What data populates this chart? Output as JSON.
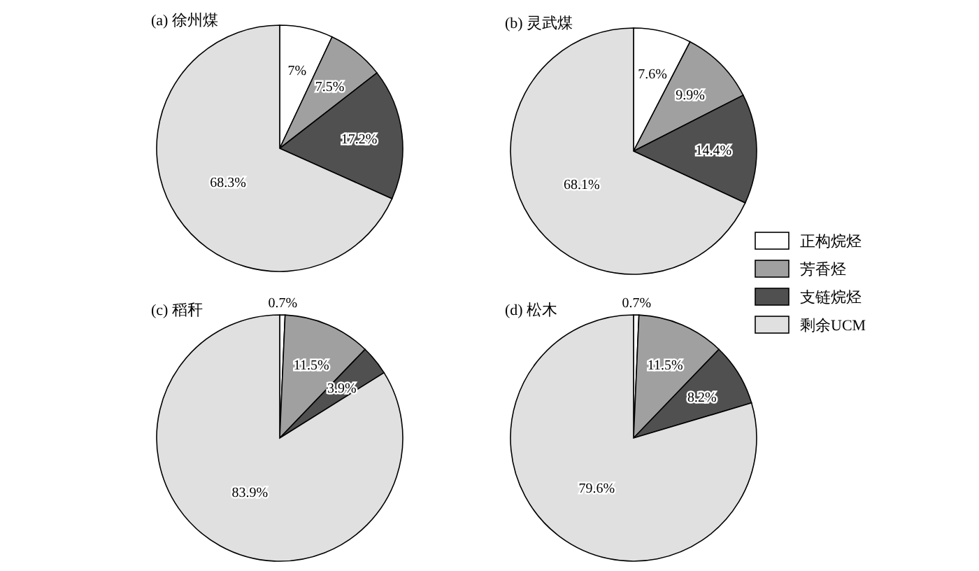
{
  "chart_data": [
    {
      "type": "pie",
      "title": "(a) 徐州煤",
      "categories": [
        null,
        null,
        null,
        null
      ],
      "values": [
        7,
        7.5,
        17.2,
        68.3
      ],
      "colors": [
        "#ffffff",
        "#a0a0a0",
        "#505050",
        "#e0e0e0"
      ],
      "value_labels": [
        "7%",
        "7.5%",
        "17.2%",
        "68.3%"
      ]
    },
    {
      "type": "pie",
      "title": "(b) 灵武煤",
      "categories": [
        "正构烷烃",
        "芳香烃",
        "支链烷烃",
        "剩余UCM"
      ],
      "values": [
        7.6,
        9.9,
        14.4,
        68.1
      ],
      "colors": [
        "#ffffff",
        "#a0a0a0",
        "#505050",
        "#e0e0e0"
      ],
      "value_labels": [
        "7.6%",
        "9.9%",
        "14.4%",
        "68.1%"
      ],
      "legend": "bottom right"
    },
    {
      "type": "pie",
      "title": "(c) 稻秆",
      "categories": [
        null,
        null,
        null,
        null
      ],
      "values": [
        0.7,
        11.5,
        3.9,
        83.9
      ],
      "colors": [
        "#ffffff",
        "#a0a0a0",
        "#505050",
        "#e0e0e0"
      ],
      "value_labels": [
        "0.7%",
        "11.5%",
        "3.9%",
        "83.9%"
      ]
    },
    {
      "type": "pie",
      "title": "(d) 松木",
      "categories": [
        null,
        null,
        null,
        null
      ],
      "values": [
        0.7,
        11.5,
        8.2,
        79.6
      ],
      "colors": [
        "#ffffff",
        "#a0a0a0",
        "#505050",
        "#e0e0e0"
      ],
      "value_labels": [
        "0.7%",
        "11.5%",
        "8.2%",
        "79.6%"
      ]
    }
  ]
}
